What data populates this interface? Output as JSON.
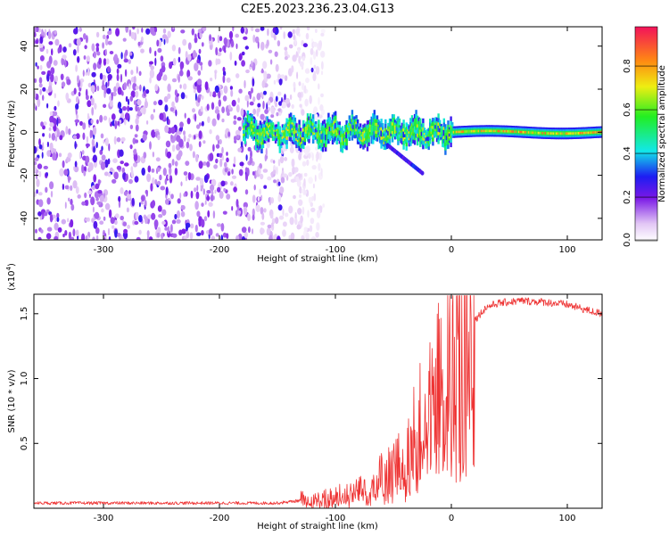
{
  "figure": {
    "title": "C2E5.2023.236.23.04.G13"
  },
  "chart_data": [
    {
      "type": "heatmap",
      "id": "spectrogram",
      "xlabel": "Height of straight line (km)",
      "ylabel": "Frequency (Hz)",
      "xlim": [
        -360,
        130
      ],
      "ylim": [
        -50,
        49
      ],
      "xticks": [
        -300,
        -200,
        -100,
        0,
        100
      ],
      "xtick_labels": [
        "-300",
        "-200",
        "-100",
        "0",
        "100"
      ],
      "yticks": [
        -40,
        -20,
        0,
        20,
        40
      ],
      "ytick_labels": [
        "-40",
        "-20",
        "0",
        "20",
        "40"
      ],
      "colorscale": "rainbow",
      "noise_region": {
        "x_range": [
          -360,
          -110
        ],
        "frequency_range": [
          -50,
          49
        ],
        "level": 0.15
      },
      "signal_track": {
        "x_start": -180,
        "x_end": 130,
        "center_frequency": 0,
        "width_hz": 6,
        "amplitude_range": [
          0.25,
          0.95
        ]
      },
      "side_branch": {
        "x": [
          -55,
          -25
        ],
        "frequency": [
          -6,
          -19
        ]
      }
    },
    {
      "type": "colorbar",
      "id": "colorbar",
      "label": "Normalized spectral amplitude",
      "range": [
        0,
        0.98
      ],
      "ticks": [
        0.0,
        0.2,
        0.4,
        0.6,
        0.8
      ],
      "tick_labels": [
        "0.0",
        "0.2",
        "0.4",
        "0.6",
        "0.8"
      ]
    },
    {
      "type": "line",
      "id": "snr",
      "xlabel": "Height of straight line (km)",
      "ylabel": "SNR (10 * v/v)",
      "multiplier": "(x10",
      "multiplier_exponent": "4",
      "multiplier_suffix": ")",
      "xlim": [
        -360,
        130
      ],
      "ylim": [
        0.0,
        1.65
      ],
      "xticks": [
        -300,
        -200,
        -100,
        0,
        100
      ],
      "xtick_labels": [
        "-300",
        "-200",
        "-100",
        "0",
        "100"
      ],
      "yticks": [
        0.5,
        1.0,
        1.5
      ],
      "ytick_labels": [
        "0.5",
        "1.0",
        "1.5"
      ],
      "line_color": "#ee3333",
      "series": [
        {
          "name": "SNR",
          "x": [
            -360,
            -300,
            -200,
            -150,
            -130,
            -120,
            -100,
            -80,
            -60,
            -40,
            -30,
            -20,
            -10,
            0,
            10,
            20,
            30,
            40,
            60,
            80,
            100,
            120,
            130
          ],
          "y": [
            0.04,
            0.04,
            0.04,
            0.04,
            0.06,
            0.05,
            0.08,
            0.15,
            0.22,
            0.35,
            0.55,
            0.75,
            0.95,
            1.05,
            1.15,
            1.45,
            1.55,
            1.58,
            1.6,
            1.59,
            1.57,
            1.52,
            1.5
          ]
        }
      ]
    }
  ]
}
